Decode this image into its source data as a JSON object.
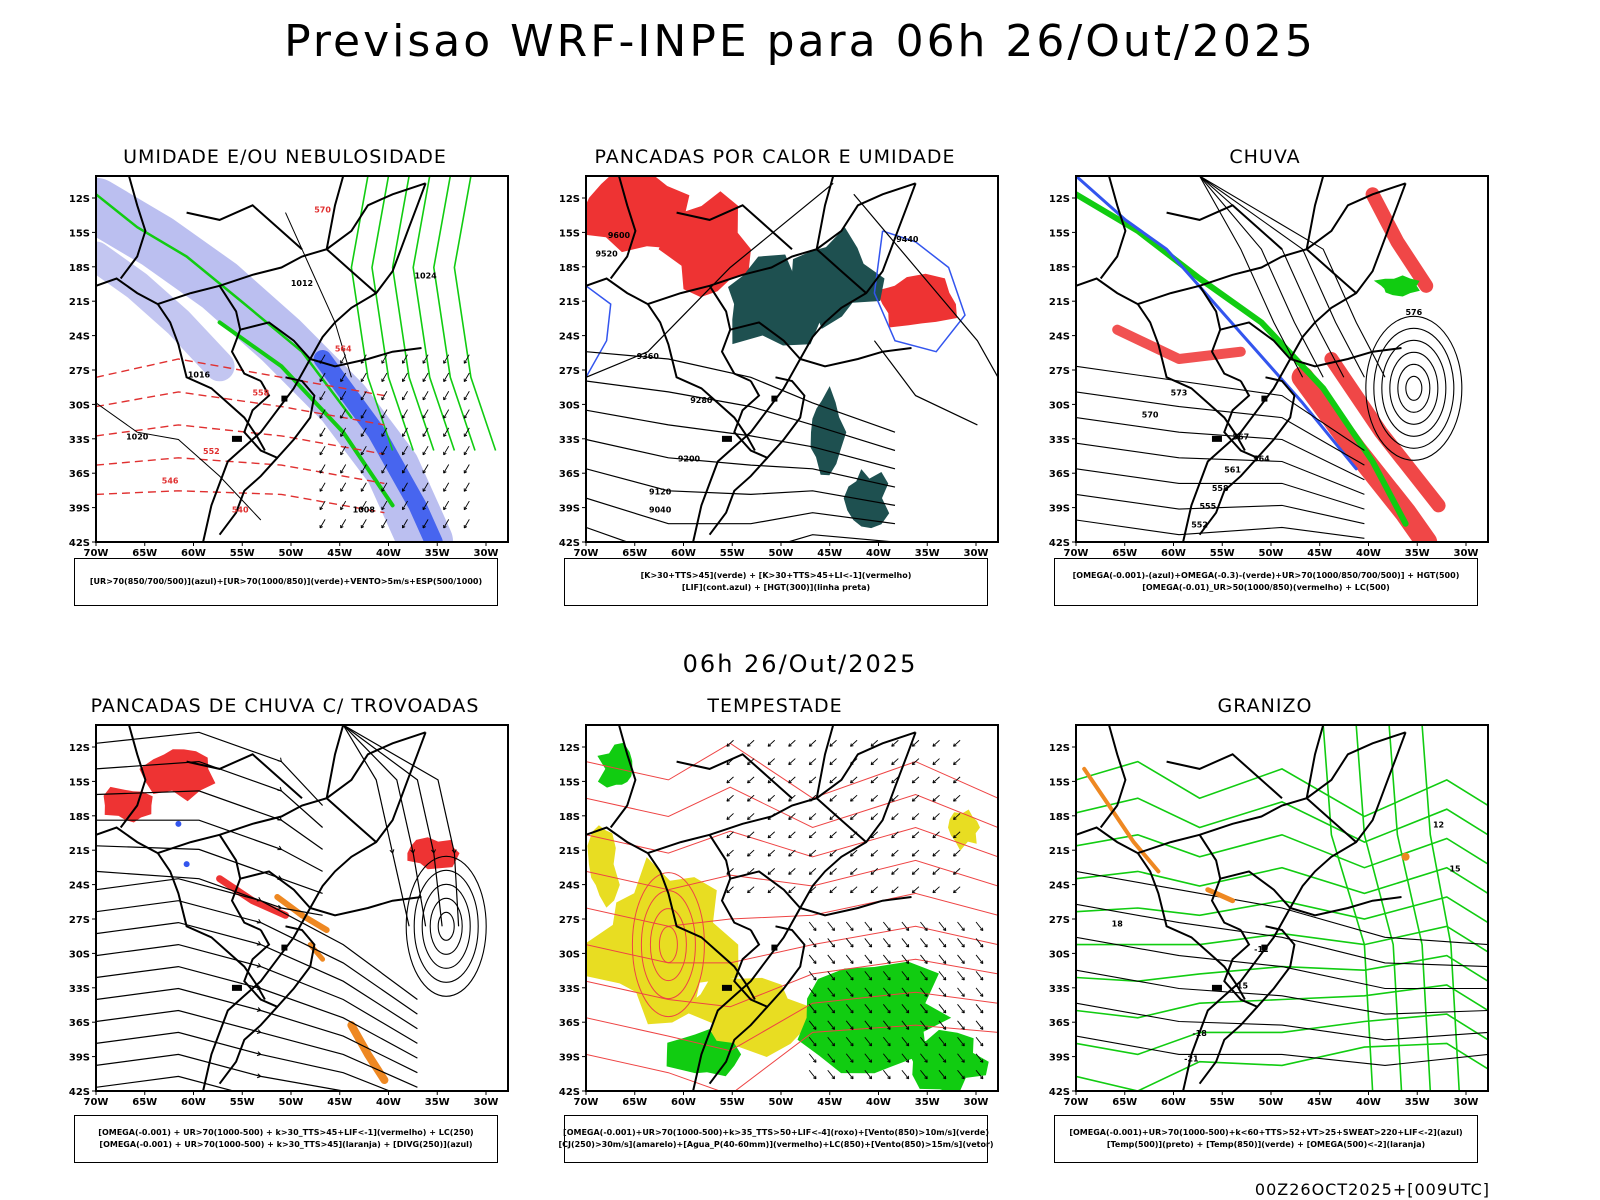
{
  "header": {
    "title": "Previsao WRF-INPE  para 06h 26/Out/2025",
    "mid_title": "06h 26/Out/2025",
    "footer": "00Z26OCT2025+[009UTC]"
  },
  "axes": {
    "lat_ticks": [
      "12S",
      "15S",
      "18S",
      "21S",
      "24S",
      "27S",
      "30S",
      "33S",
      "36S",
      "39S",
      "42S"
    ],
    "lon_ticks": [
      "70W",
      "65W",
      "60W",
      "55W",
      "50W",
      "45W",
      "40W",
      "35W",
      "30W"
    ]
  },
  "colors": {
    "blue": "#3355ee",
    "lavender": "#b4b8ee",
    "green": "#11cc11",
    "red": "#ee3333",
    "dark_teal": "#1e5050",
    "orange": "#ee8822",
    "yellow": "#e8dd22",
    "contour_black": "#000000"
  },
  "panels": [
    {
      "title": "UMIDADE E/OU NEBULOSIDADE",
      "legend": [
        "[UR>70(850/700/500)](azul)+[UR>70(1000/850)](verde)+VENTO>5m/s+ESP(500/1000)"
      ],
      "contour_labels": [
        "1012",
        "1016",
        "1020",
        "1024",
        "570",
        "564",
        "558",
        "552",
        "546",
        "540",
        "1008"
      ]
    },
    {
      "title": "PANCADAS POR CALOR E UMIDADE",
      "legend": [
        "[K>30+TTS>45](verde) + [K>30+TTS>45+LI<-1](vermelho)",
        "[LIF](cont.azul) + [HGT(300)](linha preta)"
      ],
      "contour_labels": [
        "9600",
        "9520",
        "9440",
        "9360",
        "9280",
        "9200",
        "9120",
        "9040"
      ]
    },
    {
      "title": "CHUVA",
      "legend": [
        "[OMEGA(-0.001)-(azul)+OMEGA(-0.3)-(verde)+UR>70(1000/850/700/500)] + HGT(500)",
        "[OMEGA(-0.01)_UR>50(1000/850)(vermelho) + LC(500)"
      ],
      "contour_labels": [
        "576",
        "573",
        "570",
        "567",
        "564",
        "561",
        "558",
        "555",
        "552"
      ]
    },
    {
      "title": "PANCADAS DE CHUVA C/ TROVOADAS",
      "legend": [
        "[OMEGA(-0.001) + UR>70(1000-500) + k>30_TTS>45+LIF<-1](vermelho) + LC(250)",
        "[OMEGA(-0.001) + UR>70(1000-500) + k>30_TTS>45](laranja) + [DIVG(250)](azul)"
      ],
      "contour_labels": []
    },
    {
      "title": "TEMPESTADE",
      "legend": [
        "[OMEGA(-0.001)+UR>70(1000-500)+k>35_TTS>50+LIF<-4](roxo)+[Vento(850)>10m/s](verde)",
        "[CJ(250)>30m/s](amarelo)+[Agua_P(40-60mm)](vermelho)+LC(850)+[Vento(850)>15m/s](vetor)"
      ],
      "contour_labels": []
    },
    {
      "title": "GRANIZO",
      "legend": [
        "[OMEGA(-0.001)+UR>70(1000-500)+k<60+TTS>52+VT>25+SWEAT>220+LIF<-2](azul)",
        "[Temp(500)](preto) + [Temp(850)](verde) + [OMEGA(500)<-2](laranja)"
      ],
      "contour_labels": [
        "-12",
        "-15",
        "-18",
        "-21",
        "12",
        "15",
        "18"
      ]
    }
  ]
}
